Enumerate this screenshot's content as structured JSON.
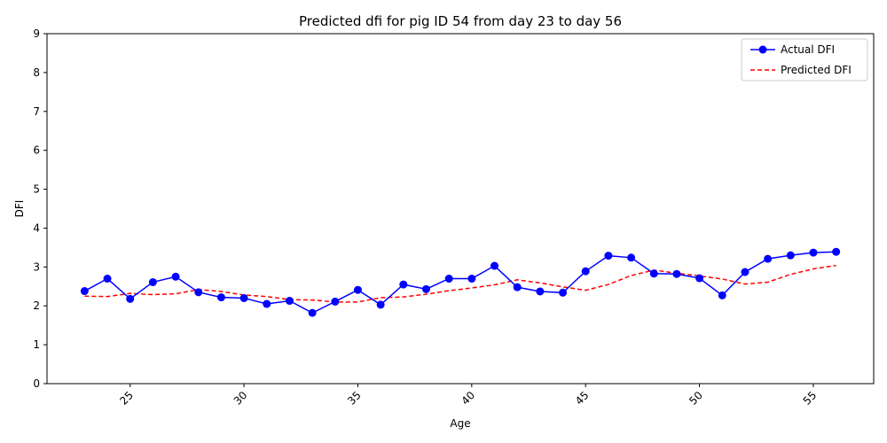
{
  "chart_data": {
    "type": "line",
    "title": "Predicted dfi for pig ID 54 from day 23 to day 56",
    "xlabel": "Age",
    "ylabel": "DFI",
    "xlim": [
      21.35,
      57.65
    ],
    "ylim": [
      0,
      9
    ],
    "x_ticks": [
      25,
      30,
      35,
      40,
      45,
      50,
      55
    ],
    "y_ticks": [
      0,
      1,
      2,
      3,
      4,
      5,
      6,
      7,
      8,
      9
    ],
    "x_tick_rotation": 45,
    "grid": false,
    "legend_position": "top-right",
    "x": [
      23,
      24,
      25,
      26,
      27,
      28,
      29,
      30,
      31,
      32,
      33,
      34,
      35,
      36,
      37,
      38,
      39,
      40,
      41,
      42,
      43,
      44,
      45,
      46,
      47,
      48,
      49,
      50,
      51,
      52,
      53,
      54,
      55,
      56
    ],
    "series": [
      {
        "name": "Actual DFI",
        "color": "#0000ff",
        "style": "solid-marker",
        "values": [
          2.38,
          2.7,
          2.18,
          2.61,
          2.75,
          2.35,
          2.22,
          2.2,
          2.05,
          2.13,
          1.82,
          2.11,
          2.41,
          2.03,
          2.55,
          2.43,
          2.7,
          2.7,
          3.03,
          2.48,
          2.37,
          2.34,
          2.89,
          3.29,
          3.24,
          2.83,
          2.82,
          2.71,
          2.27,
          2.87,
          3.21,
          3.3,
          3.37,
          3.39
        ]
      },
      {
        "name": "Predicted DFI",
        "color": "#ff0000",
        "style": "dashed",
        "values": [
          2.25,
          2.24,
          2.32,
          2.29,
          2.31,
          2.42,
          2.37,
          2.28,
          2.24,
          2.16,
          2.15,
          2.1,
          2.1,
          2.21,
          2.23,
          2.3,
          2.39,
          2.46,
          2.54,
          2.67,
          2.59,
          2.49,
          2.4,
          2.55,
          2.78,
          2.92,
          2.84,
          2.77,
          2.69,
          2.56,
          2.61,
          2.81,
          2.95,
          3.04
        ]
      }
    ]
  }
}
